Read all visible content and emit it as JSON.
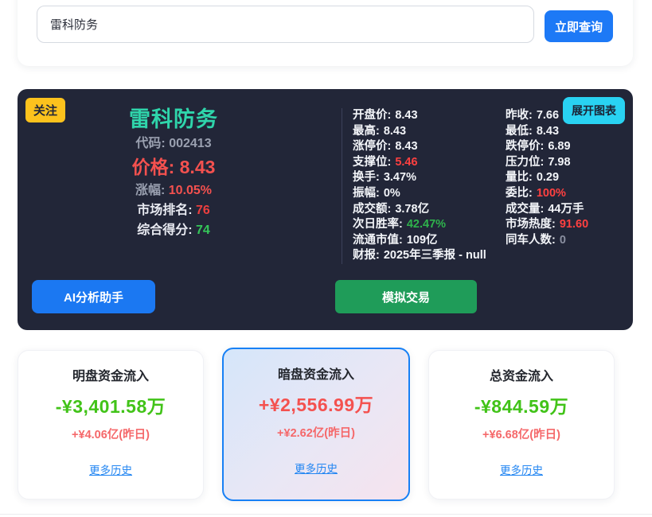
{
  "search": {
    "value": "雷科防务",
    "button_label": "立即查询"
  },
  "stock_card": {
    "watch_badge": "关注",
    "expand_chart_button": "展开图表",
    "name": "雷科防务",
    "code_label": "代码:",
    "code": "002413",
    "price_label": "价格:",
    "price": "8.43",
    "change_label": "涨幅:",
    "change": "10.05%",
    "rank_label": "市场排名:",
    "rank": "76",
    "score_label": "综合得分:",
    "score": "74",
    "details_col1": [
      {
        "label": "开盘价:",
        "value": "8.43",
        "tone": ""
      },
      {
        "label": "最高:",
        "value": "8.43",
        "tone": ""
      },
      {
        "label": "涨停价:",
        "value": "8.43",
        "tone": ""
      },
      {
        "label": "支撑位:",
        "value": "5.46",
        "tone": "red"
      },
      {
        "label": "换手:",
        "value": "3.47%",
        "tone": ""
      },
      {
        "label": "振幅:",
        "value": "0%",
        "tone": ""
      },
      {
        "label": "成交额:",
        "value": "3.78亿",
        "tone": ""
      },
      {
        "label": "次日胜率:",
        "value": "42.47%",
        "tone": "green"
      },
      {
        "label": "流通市值:",
        "value": "109亿",
        "tone": ""
      },
      {
        "label": "财报:",
        "value": "2025年三季报 - null",
        "tone": ""
      }
    ],
    "details_col2": [
      {
        "label": "昨收:",
        "value": "7.66",
        "tone": ""
      },
      {
        "label": "最低:",
        "value": "8.43",
        "tone": ""
      },
      {
        "label": "跌停价:",
        "value": "6.89",
        "tone": ""
      },
      {
        "label": "压力位:",
        "value": "7.98",
        "tone": ""
      },
      {
        "label": "量比:",
        "value": "0.29",
        "tone": ""
      },
      {
        "label": "委比:",
        "value": "100%",
        "tone": "red"
      },
      {
        "label": "成交量:",
        "value": "44万手",
        "tone": ""
      },
      {
        "label": "市场热度:",
        "value": "91.60",
        "tone": "red"
      },
      {
        "label": "同车人数:",
        "value": "0",
        "tone": "muted"
      }
    ],
    "ai_button": "AI分析助手",
    "sim_button": "模拟交易"
  },
  "flow_cards": [
    {
      "title": "明盘资金流入",
      "amount": "-¥3,401.58万",
      "tone": "green",
      "yesterday": "+¥4.06亿(昨日)",
      "link": "更多历史"
    },
    {
      "title": "暗盘资金流入",
      "amount": "+¥2,556.99万",
      "tone": "red",
      "yesterday": "+¥2.62亿(昨日)",
      "link": "更多历史"
    },
    {
      "title": "总资金流入",
      "amount": "-¥844.59万",
      "tone": "green",
      "yesterday": "+¥6.68亿(昨日)",
      "link": "更多历史"
    }
  ],
  "colors": {
    "primary_blue": "#1d79f6",
    "cyan_button": "#29d2f2",
    "badge_yellow": "#fcc21d",
    "stock_name_teal": "#2fd5ab",
    "up_red": "#f4514f",
    "inflow_green": "#41c318",
    "sim_trade_green": "#1f9c59",
    "dark_card_bg": "#222638",
    "link_blue": "#2386f2"
  }
}
